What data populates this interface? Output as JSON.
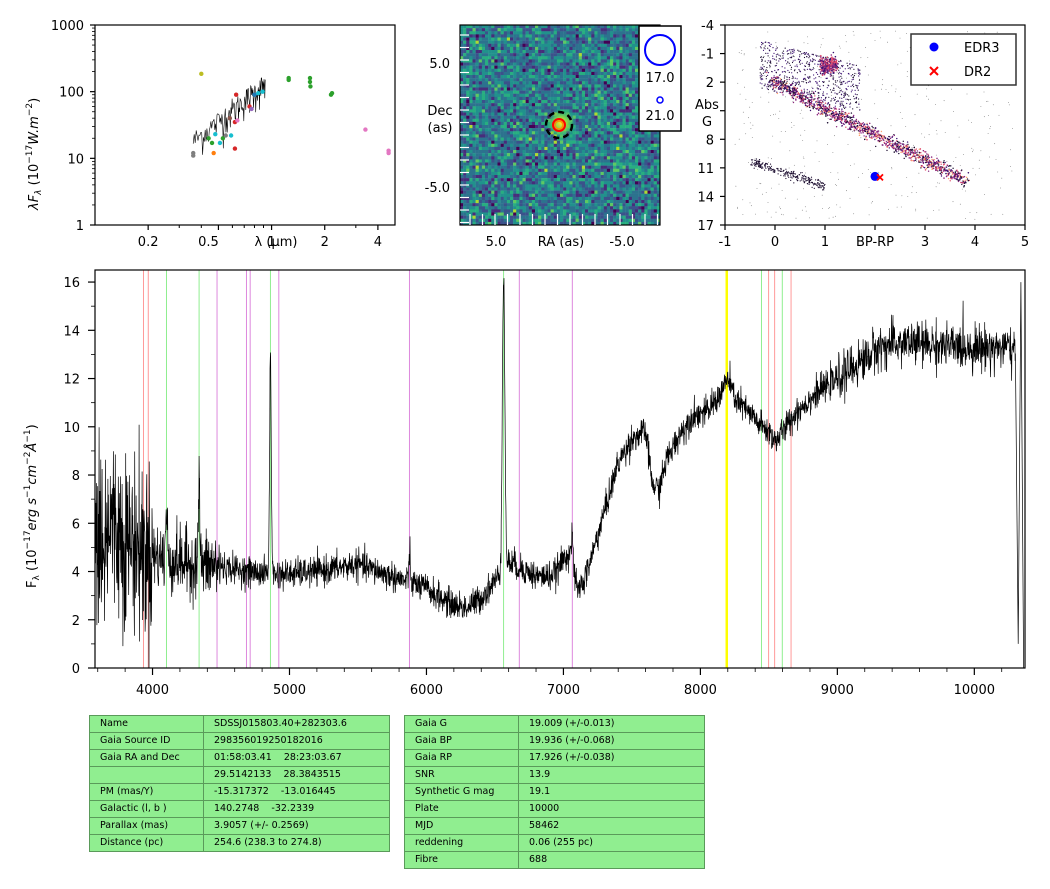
{
  "chart_data": [
    {
      "type": "scatter",
      "panel": "sed",
      "ylabel": "λF_λ (10^-17 W.m^-2)",
      "xlabel": "λ (μm)",
      "scale": "log-log",
      "xlim": [
        0.1,
        5
      ],
      "ylim": [
        1,
        1000
      ],
      "x_ticks": [
        "0.2",
        "0.5",
        "1",
        "2",
        "4"
      ],
      "y_ticks": [
        "1",
        "10",
        "100",
        "1000"
      ],
      "points": [
        {
          "x": 0.36,
          "y": 12,
          "c": "#7f7f7f"
        },
        {
          "x": 0.36,
          "y": 11,
          "c": "#7f7f7f"
        },
        {
          "x": 0.4,
          "y": 185,
          "c": "#bcbd22"
        },
        {
          "x": 0.44,
          "y": 20,
          "c": "#2ca02c"
        },
        {
          "x": 0.46,
          "y": 17,
          "c": "#2ca02c"
        },
        {
          "x": 0.47,
          "y": 12,
          "c": "#ff7f0e"
        },
        {
          "x": 0.48,
          "y": 23,
          "c": "#17becf"
        },
        {
          "x": 0.51,
          "y": 17,
          "c": "#17becf"
        },
        {
          "x": 0.53,
          "y": 20,
          "c": "#2ca02c"
        },
        {
          "x": 0.55,
          "y": 22,
          "c": "#7f7f7f"
        },
        {
          "x": 0.58,
          "y": 40,
          "c": "#8c564b"
        },
        {
          "x": 0.59,
          "y": 22,
          "c": "#17becf"
        },
        {
          "x": 0.62,
          "y": 35,
          "c": "#d62728"
        },
        {
          "x": 0.62,
          "y": 14,
          "c": "#d62728"
        },
        {
          "x": 0.63,
          "y": 90,
          "c": "#d62728"
        },
        {
          "x": 0.64,
          "y": 37,
          "c": "#e377c2"
        },
        {
          "x": 0.75,
          "y": 60,
          "c": "#d62728"
        },
        {
          "x": 0.77,
          "y": 55,
          "c": "#9467bd"
        },
        {
          "x": 0.8,
          "y": 90,
          "c": "#1f77b4"
        },
        {
          "x": 0.84,
          "y": 95,
          "c": "#17becf"
        },
        {
          "x": 0.89,
          "y": 100,
          "c": "#17becf"
        },
        {
          "x": 1.25,
          "y": 150,
          "c": "#2ca02c"
        },
        {
          "x": 1.25,
          "y": 160,
          "c": "#2ca02c"
        },
        {
          "x": 1.65,
          "y": 160,
          "c": "#2ca02c"
        },
        {
          "x": 1.65,
          "y": 140,
          "c": "#2ca02c"
        },
        {
          "x": 1.66,
          "y": 120,
          "c": "#2ca02c"
        },
        {
          "x": 2.17,
          "y": 90,
          "c": "#2ca02c"
        },
        {
          "x": 2.2,
          "y": 95,
          "c": "#2ca02c"
        },
        {
          "x": 3.4,
          "y": 27,
          "c": "#e377c2"
        },
        {
          "x": 4.6,
          "y": 12,
          "c": "#e377c2"
        },
        {
          "x": 4.6,
          "y": 13,
          "c": "#e377c2"
        }
      ]
    },
    {
      "type": "heatmap",
      "panel": "image",
      "xlabel": "RA (as)",
      "ylabel": "Dec (as)",
      "x_ticks": [
        "5.0",
        "-5.0"
      ],
      "y_ticks": [
        "5.0",
        "-5.0"
      ],
      "legend": [
        "17.0",
        "21.0"
      ]
    },
    {
      "type": "scatter",
      "panel": "cmd",
      "xlabel": "BP-RP",
      "ylabel": "Abs G",
      "xlim": [
        -1,
        5
      ],
      "ylim": [
        17,
        -4
      ],
      "x_ticks": [
        "-1",
        "0",
        "1",
        "2",
        "3",
        "4",
        "5"
      ],
      "y_ticks": [
        "-4",
        "-1",
        "2",
        "5",
        "8",
        "11",
        "14",
        "17"
      ],
      "legend": [
        {
          "label": "EDR3",
          "color": "#0000ff",
          "marker": "circle"
        },
        {
          "label": "DR2",
          "color": "#ff0000",
          "marker": "x"
        }
      ],
      "target": {
        "edr3": [
          2.0,
          11.9
        ],
        "dr2": [
          2.1,
          12.0
        ]
      }
    },
    {
      "type": "line",
      "panel": "spectrum",
      "xlabel": "",
      "ylabel": "F_λ (10^-17 erg s^-1 cm^-2 Å^-1)",
      "xlim": [
        3580,
        10370
      ],
      "ylim": [
        0,
        16.5
      ],
      "x_ticks": [
        "4000",
        "5000",
        "6000",
        "7000",
        "8000",
        "9000",
        "10000"
      ],
      "y_ticks": [
        "0",
        "2",
        "4",
        "6",
        "8",
        "10",
        "12",
        "14",
        "16"
      ],
      "continuum": [
        [
          3600,
          6.5
        ],
        [
          3700,
          6.0
        ],
        [
          3800,
          5.4
        ],
        [
          3900,
          5.0
        ],
        [
          4000,
          4.7
        ],
        [
          4100,
          4.5
        ],
        [
          4200,
          4.4
        ],
        [
          4300,
          4.3
        ],
        [
          4500,
          4.2
        ],
        [
          4700,
          4.0
        ],
        [
          4850,
          3.9
        ],
        [
          5000,
          3.9
        ],
        [
          5200,
          4.0
        ],
        [
          5400,
          4.2
        ],
        [
          5500,
          4.3
        ],
        [
          5600,
          4.1
        ],
        [
          5700,
          3.9
        ],
        [
          5800,
          3.7
        ],
        [
          5900,
          3.5
        ],
        [
          6000,
          3.3
        ],
        [
          6100,
          2.9
        ],
        [
          6200,
          2.6
        ],
        [
          6300,
          2.5
        ],
        [
          6400,
          2.9
        ],
        [
          6500,
          3.6
        ],
        [
          6600,
          4.4
        ],
        [
          6700,
          4.1
        ],
        [
          6800,
          3.8
        ],
        [
          6900,
          3.8
        ],
        [
          6950,
          4.0
        ],
        [
          7000,
          4.5
        ],
        [
          7050,
          4.9
        ],
        [
          7100,
          3.2
        ],
        [
          7150,
          3.6
        ],
        [
          7200,
          4.5
        ],
        [
          7300,
          6.5
        ],
        [
          7400,
          8.5
        ],
        [
          7500,
          9.5
        ],
        [
          7600,
          9.8
        ],
        [
          7650,
          7.6
        ],
        [
          7700,
          7.4
        ],
        [
          7750,
          8.6
        ],
        [
          7850,
          9.7
        ],
        [
          7950,
          10.5
        ],
        [
          8050,
          10.6
        ],
        [
          8150,
          11.4
        ],
        [
          8200,
          12.0
        ],
        [
          8250,
          11.2
        ],
        [
          8350,
          10.6
        ],
        [
          8450,
          10.0
        ],
        [
          8500,
          9.8
        ],
        [
          8550,
          9.4
        ],
        [
          8600,
          9.8
        ],
        [
          8700,
          10.6
        ],
        [
          8850,
          11.4
        ],
        [
          9000,
          12.0
        ],
        [
          9200,
          12.8
        ],
        [
          9300,
          13.3
        ],
        [
          9500,
          13.5
        ],
        [
          9700,
          13.4
        ],
        [
          9900,
          13.3
        ],
        [
          10100,
          13.3
        ],
        [
          10250,
          13.3
        ],
        [
          10300,
          13.0
        ]
      ],
      "emission_lines": [
        {
          "wl": 4102,
          "peak": 6.5
        },
        {
          "wl": 4340,
          "peak": 7.5
        },
        {
          "wl": 4861,
          "peak": 12.9
        },
        {
          "wl": 5876,
          "peak": 4.6
        },
        {
          "wl": 6563,
          "peak": 16.3
        },
        {
          "wl": 7065,
          "peak": 5.3
        }
      ],
      "reference_lines": [
        {
          "wl": 3934,
          "color": "#ff9999"
        },
        {
          "wl": 3969,
          "color": "#ff9999"
        },
        {
          "wl": 4102,
          "color": "#90ee90"
        },
        {
          "wl": 4340,
          "color": "#90ee90"
        },
        {
          "wl": 4471,
          "color": "#dd88dd"
        },
        {
          "wl": 4686,
          "color": "#dd88dd"
        },
        {
          "wl": 4713,
          "color": "#dd88dd"
        },
        {
          "wl": 4861,
          "color": "#90ee90"
        },
        {
          "wl": 4922,
          "color": "#dd88dd"
        },
        {
          "wl": 5876,
          "color": "#dd88dd"
        },
        {
          "wl": 6563,
          "color": "#90ee90"
        },
        {
          "wl": 6678,
          "color": "#dd88dd"
        },
        {
          "wl": 7065,
          "color": "#dd88dd"
        },
        {
          "wl": 8190,
          "color": "#ffff00"
        },
        {
          "wl": 8195,
          "color": "#ffff00"
        },
        {
          "wl": 8446,
          "color": "#90ee90"
        },
        {
          "wl": 8498,
          "color": "#ff9999"
        },
        {
          "wl": 8542,
          "color": "#ff9999"
        },
        {
          "wl": 8598,
          "color": "#90ee90"
        },
        {
          "wl": 8662,
          "color": "#ff9999"
        }
      ]
    }
  ],
  "labels": {
    "sed_ylabel_main": "λF",
    "sed_ylabel_sub": "λ",
    "sed_ylabel_rest": " (10",
    "sed_ylabel_exp": "−17",
    "sed_ylabel_unit": "W.m",
    "sed_ylabel_exp2": "−2",
    "sed_ylabel_close": ")",
    "sed_xlabel": "λ (μm)",
    "img_xlabel": "RA (as)",
    "img_ylabel_1": "Dec",
    "img_ylabel_2": "(as)",
    "cmd_xlabel": "BP-RP",
    "cmd_ylabel_1": "Abs",
    "cmd_ylabel_2": "G",
    "spec_ylabel_main": "F",
    "spec_ylabel_sub": "λ",
    "spec_ylabel_rest": " (10",
    "spec_ylabel_exp": "−17",
    "spec_ylabel_unit1": "erg s",
    "spec_ylabel_exp2": "−1",
    "spec_ylabel_unit2": "cm",
    "spec_ylabel_exp3": "−2",
    "spec_ylabel_unit3": "Å",
    "spec_ylabel_exp4": "−1",
    "spec_ylabel_close": ")"
  },
  "table_left": [
    {
      "key": "Name",
      "value": "SDSSJ015803.40+282303.6"
    },
    {
      "key": "Gaia Source ID",
      "value": "298356019250182016"
    },
    {
      "key": "Gaia RA and Dec",
      "value": "01:58:03.41    28:23:03.67"
    },
    {
      "key": "",
      "value": "29.5142133    28.3843515"
    },
    {
      "key": "PM (mas/Y)",
      "value": "-15.317372    -13.016445"
    },
    {
      "key": "Galactic (l, b )",
      "value": "140.2748    -32.2339"
    },
    {
      "key": "Parallax (mas)",
      "value": "3.9057 (+/- 0.2569)"
    },
    {
      "key": "Distance (pc)",
      "value": "254.6 (238.3 to 274.8)"
    }
  ],
  "table_right": [
    {
      "key": "Gaia G",
      "value": "19.009 (+/-0.013)"
    },
    {
      "key": "Gaia BP",
      "value": "19.936 (+/-0.068)"
    },
    {
      "key": "Gaia RP",
      "value": "17.926 (+/-0.038)"
    },
    {
      "key": "SNR",
      "value": "13.9"
    },
    {
      "key": "Synthetic G mag",
      "value": "19.1"
    },
    {
      "key": "Plate",
      "value": "10000"
    },
    {
      "key": "MJD",
      "value": "58462"
    },
    {
      "key": "reddening",
      "value": "0.06 (255 pc)"
    },
    {
      "key": "Fibre",
      "value": "688"
    }
  ],
  "colors": {
    "table_bg": "#90ee90",
    "spectrum": "#000000",
    "edr3": "#0000ff",
    "dr2": "#ff0000"
  }
}
